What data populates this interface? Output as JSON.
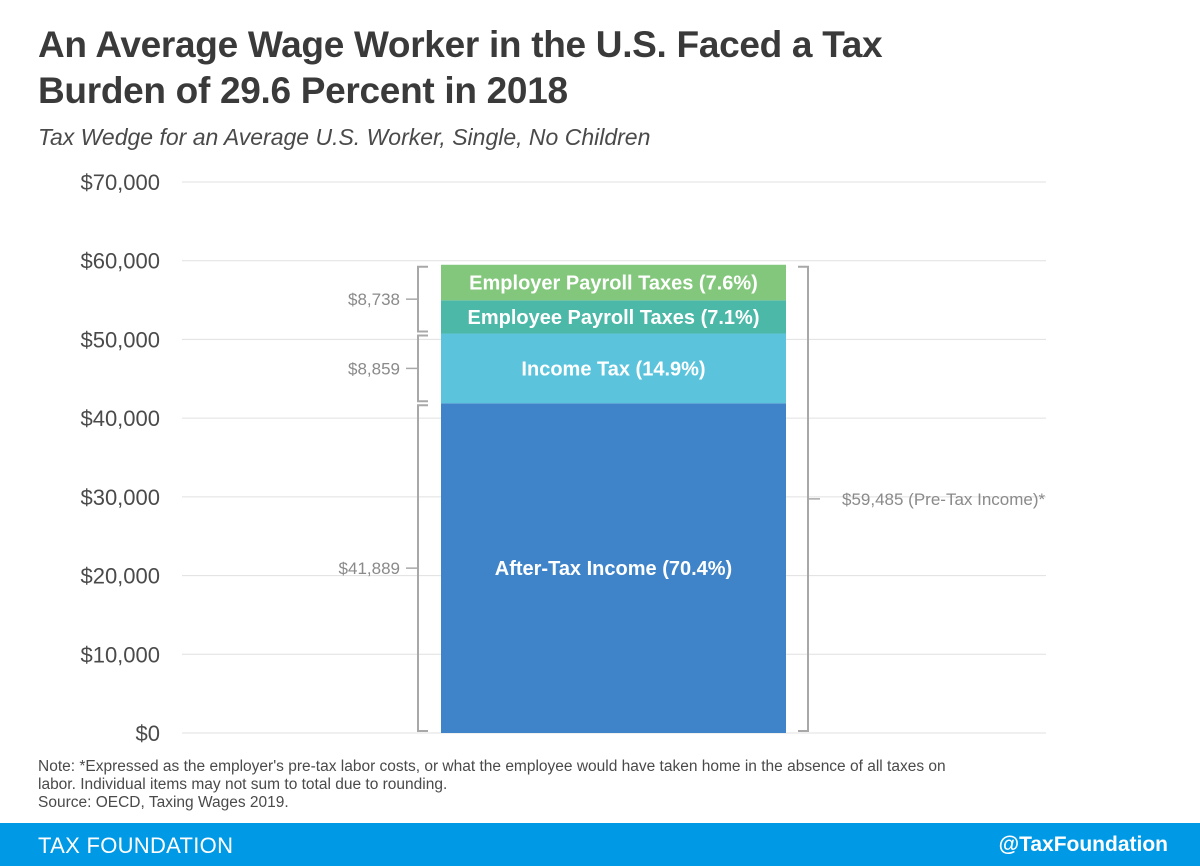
{
  "title_line1": "An Average Wage Worker in the U.S. Faced a Tax",
  "title_line2": "Burden of 29.6 Percent in 2018",
  "subtitle": "Tax Wedge for an Average U.S. Worker, Single, No Children",
  "note_line1": "Note: *Expressed as the employer's pre-tax labor costs, or what the employee would have taken home in the absence of all taxes on",
  "note_line2": "labor. Individual items may not sum to total due to rounding.",
  "source": "Source: OECD, Taxing Wages 2019.",
  "footer": {
    "brand": "TAX FOUNDATION",
    "handle": "@TaxFoundation"
  },
  "chart_data": {
    "type": "bar",
    "stacked": true,
    "ylim": [
      0,
      70000
    ],
    "yticks": [
      {
        "value": 70000,
        "label": "$70,000"
      },
      {
        "value": 60000,
        "label": "$60,000"
      },
      {
        "value": 50000,
        "label": "$50,000"
      },
      {
        "value": 40000,
        "label": "$40,000"
      },
      {
        "value": 30000,
        "label": "$30,000"
      },
      {
        "value": 20000,
        "label": "$20,000"
      },
      {
        "value": 10000,
        "label": "$10,000"
      },
      {
        "value": 0,
        "label": "$0"
      }
    ],
    "grid": true,
    "series": [
      {
        "label": "After-Tax Income (70.4%)",
        "value": 41889,
        "color": "#3f84c8"
      },
      {
        "label": "Income Tax (14.9%)",
        "value": 8859,
        "color": "#5bc4dc"
      },
      {
        "label": "Employee Payroll Taxes (7.1%)",
        "value": 4223,
        "color": "#4cb8a7"
      },
      {
        "label": "Employer Payroll Taxes (7.6%)",
        "value": 4515,
        "color": "#83c77c"
      }
    ],
    "brackets": [
      {
        "from": 50748,
        "to": 59485,
        "label": "$8,738"
      },
      {
        "from": 41889,
        "to": 50748,
        "label": "$8,859"
      },
      {
        "from": 0,
        "to": 41889,
        "label": "$41,889"
      }
    ],
    "total_bracket": {
      "from": 0,
      "to": 59485,
      "label": "$59,485 (Pre-Tax Income)*"
    }
  }
}
